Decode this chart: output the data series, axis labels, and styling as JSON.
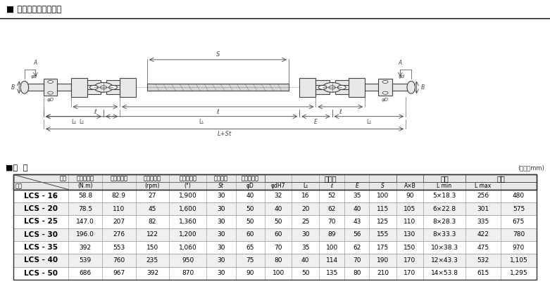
{
  "title": "■ 図面・製品仕様表組",
  "spec_title": "■仕  様",
  "unit_note": "(単位：mm)",
  "diagram_bg": "#cfe2f0",
  "col_headers_r1": [
    "記号",
    "許容トルク",
    "最大トルク",
    "クロス定格",
    "許容回転数",
    "許容曲角",
    "スライド長",
    "ヨーク",
    "",
    "",
    "",
    "",
    "キー",
    "全長",
    ""
  ],
  "col_headers_r2": [
    "型式",
    "(N.m)",
    "",
    "(rpm)",
    "(°)",
    "St",
    "φD",
    "φdH7",
    "L₁",
    "ℓ",
    "E",
    "S",
    "A×B",
    "L min",
    "L max"
  ],
  "yoke_label": "ヨーク",
  "key_label": "キー",
  "zencho_label": "全長",
  "kisho_label": "記号",
  "kata_label": "型式",
  "rows": [
    {
      "model": "LCS - 16",
      "t1": "58.8",
      "t2": "82.9",
      "cross": "27",
      "rpm": "1,900",
      "angle": "30",
      "St": "40",
      "phiD": "32",
      "phidH7": "16",
      "L1": "52",
      "l": "35",
      "E": "100",
      "S": "90",
      "AxB": "5×18.3",
      "Lmin": "256",
      "Lmax": "480"
    },
    {
      "model": "LCS - 20",
      "t1": "78.5",
      "t2": "110",
      "cross": "45",
      "rpm": "1,600",
      "angle": "30",
      "St": "50",
      "phiD": "40",
      "phidH7": "20",
      "L1": "62",
      "l": "40",
      "E": "115",
      "S": "105",
      "AxB": "6×22.8",
      "Lmin": "301",
      "Lmax": "575"
    },
    {
      "model": "LCS - 25",
      "t1": "147.0",
      "t2": "207",
      "cross": "82",
      "rpm": "1,360",
      "angle": "30",
      "St": "50",
      "phiD": "50",
      "phidH7": "25",
      "L1": "70",
      "l": "43",
      "E": "125",
      "S": "110",
      "AxB": "8×28.3",
      "Lmin": "335",
      "Lmax": "675"
    },
    {
      "model": "LCS - 30",
      "t1": "196.0",
      "t2": "276",
      "cross": "122",
      "rpm": "1,200",
      "angle": "30",
      "St": "60",
      "phiD": "60",
      "phidH7": "30",
      "L1": "89",
      "l": "56",
      "E": "155",
      "S": "130",
      "AxB": "8×33.3",
      "Lmin": "422",
      "Lmax": "780"
    },
    {
      "model": "LCS - 35",
      "t1": "392",
      "t2": "553",
      "cross": "150",
      "rpm": "1,060",
      "angle": "30",
      "St": "65",
      "phiD": "70",
      "phidH7": "35",
      "L1": "100",
      "l": "62",
      "E": "175",
      "S": "150",
      "AxB": "10×38.3",
      "Lmin": "475",
      "Lmax": "970"
    },
    {
      "model": "LCS - 40",
      "t1": "539",
      "t2": "760",
      "cross": "235",
      "rpm": "950",
      "angle": "30",
      "St": "75",
      "phiD": "80",
      "phidH7": "40",
      "L1": "114",
      "l": "70",
      "E": "190",
      "S": "170",
      "AxB": "12×43.3",
      "Lmin": "532",
      "Lmax": "1,105"
    },
    {
      "model": "LCS - 50",
      "t1": "686",
      "t2": "967",
      "cross": "392",
      "rpm": "870",
      "angle": "30",
      "St": "90",
      "phiD": "100",
      "phidH7": "50",
      "L1": "135",
      "l": "80",
      "E": "210",
      "S": "170",
      "AxB": "14×53.8",
      "Lmin": "615",
      "Lmax": "1,295"
    }
  ],
  "col_widths": [
    8.5,
    5.2,
    5.2,
    5.2,
    5.8,
    4.5,
    4.5,
    4.2,
    4.2,
    4.0,
    3.8,
    4.2,
    4.2,
    6.5,
    5.5,
    5.5
  ],
  "table_header_bg": "#e8e8e8",
  "row_bg_odd": "#ffffff",
  "row_bg_even": "#f0f0f0",
  "border_color": "#555555",
  "text_color": "#000000"
}
